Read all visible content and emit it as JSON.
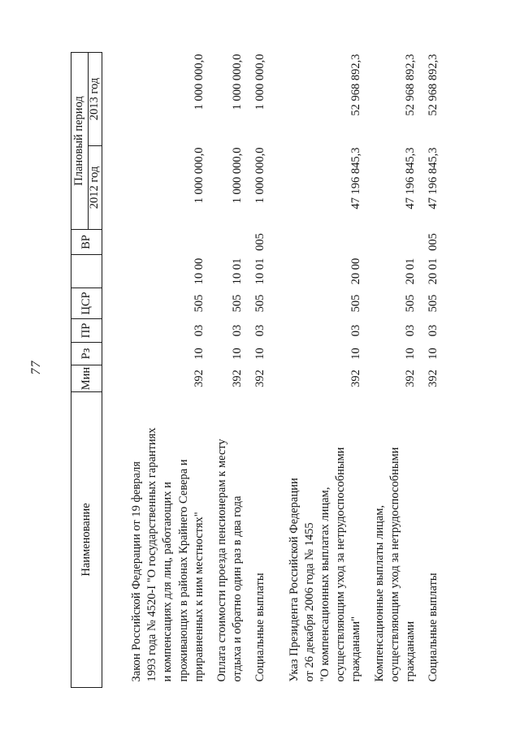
{
  "page": {
    "number": "77"
  },
  "table": {
    "headers": {
      "name": "Наименование",
      "min": "Мин",
      "rz": "Рз",
      "pr": "ПР",
      "tsr": "ЦСР",
      "sub": "",
      "vr": "ВР",
      "period": "Плановый период",
      "y2012": "2012 год",
      "y2013": "2013 год"
    },
    "rows": [
      {
        "name": "Закон Российской Федерации от 19 февраля\n1993 года № 4520-I \"О государственных гарантиях\nи компенсациях для лиц, работающих и\nпроживающих в районах Крайнего Севера и\nприравненных к ним местностях\"",
        "min": "392",
        "rz": "10",
        "pr": "03",
        "tsr": "505",
        "sub": "10 00",
        "vr": "",
        "y2012": "1 000 000,0",
        "y2013": "1 000 000,0"
      },
      {
        "name": "Оплата стоимости проезда пенсионерам к месту\nотдыха и обратно один раз в два года",
        "min": "392",
        "rz": "10",
        "pr": "03",
        "tsr": "505",
        "sub": "10 01",
        "vr": "",
        "y2012": "1 000 000,0",
        "y2013": "1 000 000,0"
      },
      {
        "name": "Социальные выплаты",
        "min": "392",
        "rz": "10",
        "pr": "03",
        "tsr": "505",
        "sub": "10 01",
        "vr": "005",
        "y2012": "1 000 000,0",
        "y2013": "1 000 000,0"
      },
      {
        "name": "Указ Президента Российской Федерации\nот 26 декабря 2006 года № 1455\n\"О компенсационных выплатах лицам,\nосуществляющим уход за нетрудоспособными\nгражданами\"",
        "min": "392",
        "rz": "10",
        "pr": "03",
        "tsr": "505",
        "sub": "20 00",
        "vr": "",
        "y2012": "47 196 845,3",
        "y2013": "52 968 892,3"
      },
      {
        "name": "Компенсационные выплаты лицам,\nосуществляющим уход за нетрудоспособными\nгражданами",
        "min": "392",
        "rz": "10",
        "pr": "03",
        "tsr": "505",
        "sub": "20 01",
        "vr": "",
        "y2012": "47 196 845,3",
        "y2013": "52 968 892,3"
      },
      {
        "name": "Социальные выплаты",
        "min": "392",
        "rz": "10",
        "pr": "03",
        "tsr": "505",
        "sub": "20 01",
        "vr": "005",
        "y2012": "47 196 845,3",
        "y2013": "52 968 892,3"
      }
    ]
  }
}
